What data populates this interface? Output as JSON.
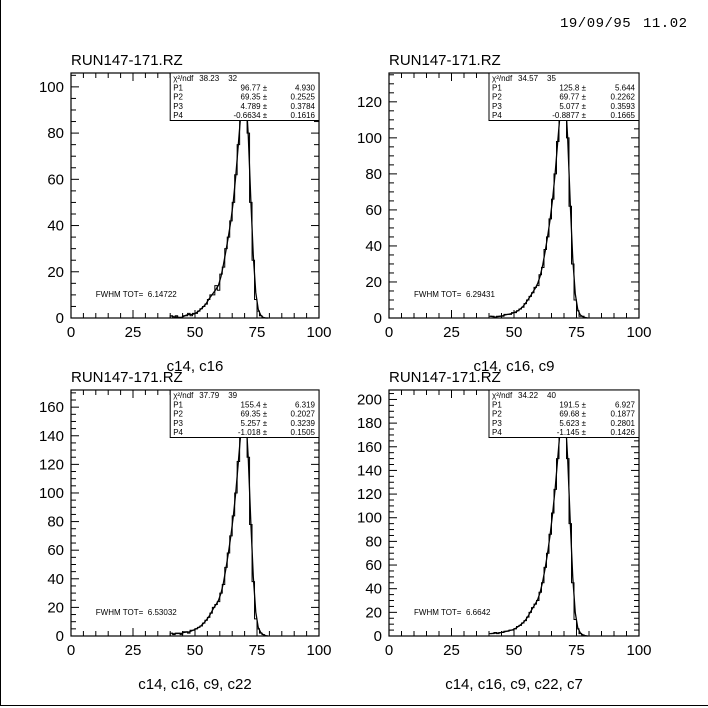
{
  "header": {
    "date": "19/09/95",
    "time": "11.02"
  },
  "chart_data": [
    {
      "type": "bar",
      "title": "RUN147-171.RZ",
      "xlabel": "c14, c16",
      "xlim": [
        0,
        100
      ],
      "ylim": [
        0,
        106
      ],
      "xticks": [
        "0",
        "25",
        "50",
        "75",
        "100"
      ],
      "yticks": [
        "0",
        "20",
        "40",
        "60",
        "80",
        "100"
      ],
      "bin_start": 40,
      "bin_width": 1,
      "values": [
        1,
        0,
        1,
        0,
        0,
        1,
        1,
        2,
        1,
        2,
        2,
        3,
        4,
        5,
        6,
        8,
        10,
        10,
        14,
        12,
        19,
        22,
        30,
        35,
        42,
        50,
        62,
        75,
        90,
        100,
        104,
        80,
        50,
        25,
        8,
        3,
        1,
        0,
        0,
        0
      ],
      "stats": {
        "chi2_header": "χ²/ndf",
        "chi2": "38.23",
        "ndf": "32",
        "rows": [
          {
            "name": "P1",
            "value": "96.77 ±",
            "error": "4.930"
          },
          {
            "name": "P2",
            "value": "69.35 ±",
            "error": "0.2525"
          },
          {
            "name": "P3",
            "value": "4.789 ±",
            "error": "0.3784"
          },
          {
            "name": "P4",
            "value": "-0.6634 ±",
            "error": "0.1616"
          }
        ]
      },
      "annotation": {
        "label": "FWHM TOT=",
        "value": "6.14722"
      }
    },
    {
      "type": "bar",
      "title": "RUN147-171.RZ",
      "xlabel": "c14, c16, c9",
      "xlim": [
        0,
        100
      ],
      "ylim": [
        0,
        136
      ],
      "xticks": [
        "0",
        "25",
        "50",
        "75",
        "100"
      ],
      "yticks": [
        "0",
        "20",
        "40",
        "60",
        "80",
        "100",
        "120"
      ],
      "bin_start": 40,
      "bin_width": 1,
      "values": [
        1,
        1,
        0,
        1,
        1,
        1,
        2,
        2,
        2,
        3,
        3,
        4,
        5,
        6,
        8,
        10,
        12,
        14,
        17,
        18,
        24,
        28,
        38,
        45,
        55,
        66,
        80,
        98,
        116,
        128,
        134,
        100,
        62,
        30,
        10,
        4,
        1,
        1,
        0,
        0
      ],
      "stats": {
        "chi2_header": "χ²/ndf",
        "chi2": "34.57",
        "ndf": "35",
        "rows": [
          {
            "name": "P1",
            "value": "125.8 ±",
            "error": "5.644"
          },
          {
            "name": "P2",
            "value": "69.77 ±",
            "error": "0.2262"
          },
          {
            "name": "P3",
            "value": "5.077 ±",
            "error": "0.3593"
          },
          {
            "name": "P4",
            "value": "-0.8877 ±",
            "error": "0.1665"
          }
        ]
      },
      "annotation": {
        "label": "FWHM TOT=",
        "value": "6.29431"
      }
    },
    {
      "type": "bar",
      "title": "RUN147-171.RZ",
      "xlabel": "c14, c16, c9, c22",
      "xlim": [
        0,
        100
      ],
      "ylim": [
        0,
        172
      ],
      "xticks": [
        "0",
        "25",
        "50",
        "75",
        "100"
      ],
      "yticks": [
        "0",
        "20",
        "40",
        "60",
        "80",
        "100",
        "120",
        "140",
        "160"
      ],
      "bin_start": 40,
      "bin_width": 1,
      "values": [
        2,
        1,
        2,
        2,
        1,
        3,
        3,
        2,
        4,
        4,
        5,
        6,
        7,
        9,
        11,
        13,
        16,
        20,
        22,
        24,
        30,
        36,
        48,
        58,
        70,
        84,
        100,
        122,
        145,
        160,
        166,
        125,
        78,
        38,
        12,
        5,
        2,
        1,
        0,
        0
      ],
      "stats": {
        "chi2_header": "χ²/ndf",
        "chi2": "37.79",
        "ndf": "39",
        "rows": [
          {
            "name": "P1",
            "value": "155.4 ±",
            "error": "6.319"
          },
          {
            "name": "P2",
            "value": "69.35 ±",
            "error": "0.2027"
          },
          {
            "name": "P3",
            "value": "5.257 ±",
            "error": "0.3239"
          },
          {
            "name": "P4",
            "value": "-1.018 ±",
            "error": "0.1505"
          }
        ]
      },
      "annotation": {
        "label": "FWHM TOT=",
        "value": "6.53032"
      }
    },
    {
      "type": "bar",
      "title": "RUN147-171.RZ",
      "xlabel": "c14, c16, c9, c22, c7",
      "xlim": [
        0,
        100
      ],
      "ylim": [
        0,
        208
      ],
      "xticks": [
        "0",
        "25",
        "50",
        "75",
        "100"
      ],
      "yticks": [
        "0",
        "20",
        "40",
        "60",
        "80",
        "100",
        "120",
        "140",
        "160",
        "180",
        "200"
      ],
      "bin_start": 40,
      "bin_width": 1,
      "values": [
        2,
        2,
        3,
        2,
        3,
        3,
        4,
        4,
        5,
        5,
        6,
        8,
        9,
        11,
        13,
        16,
        20,
        24,
        27,
        30,
        37,
        45,
        58,
        70,
        86,
        104,
        124,
        150,
        178,
        196,
        200,
        150,
        95,
        45,
        14,
        6,
        2,
        1,
        0,
        0
      ],
      "stats": {
        "chi2_header": "χ²/ndf",
        "chi2": "34.22",
        "ndf": "40",
        "rows": [
          {
            "name": "P1",
            "value": "191.5 ±",
            "error": "6.927"
          },
          {
            "name": "P2",
            "value": "69.68 ±",
            "error": "0.1877"
          },
          {
            "name": "P3",
            "value": "5.623 ±",
            "error": "0.2801"
          },
          {
            "name": "P4",
            "value": "-1.145 ±",
            "error": "0.1426"
          }
        ]
      },
      "annotation": {
        "label": "FWHM TOT=",
        "value": "6.6642"
      }
    }
  ]
}
